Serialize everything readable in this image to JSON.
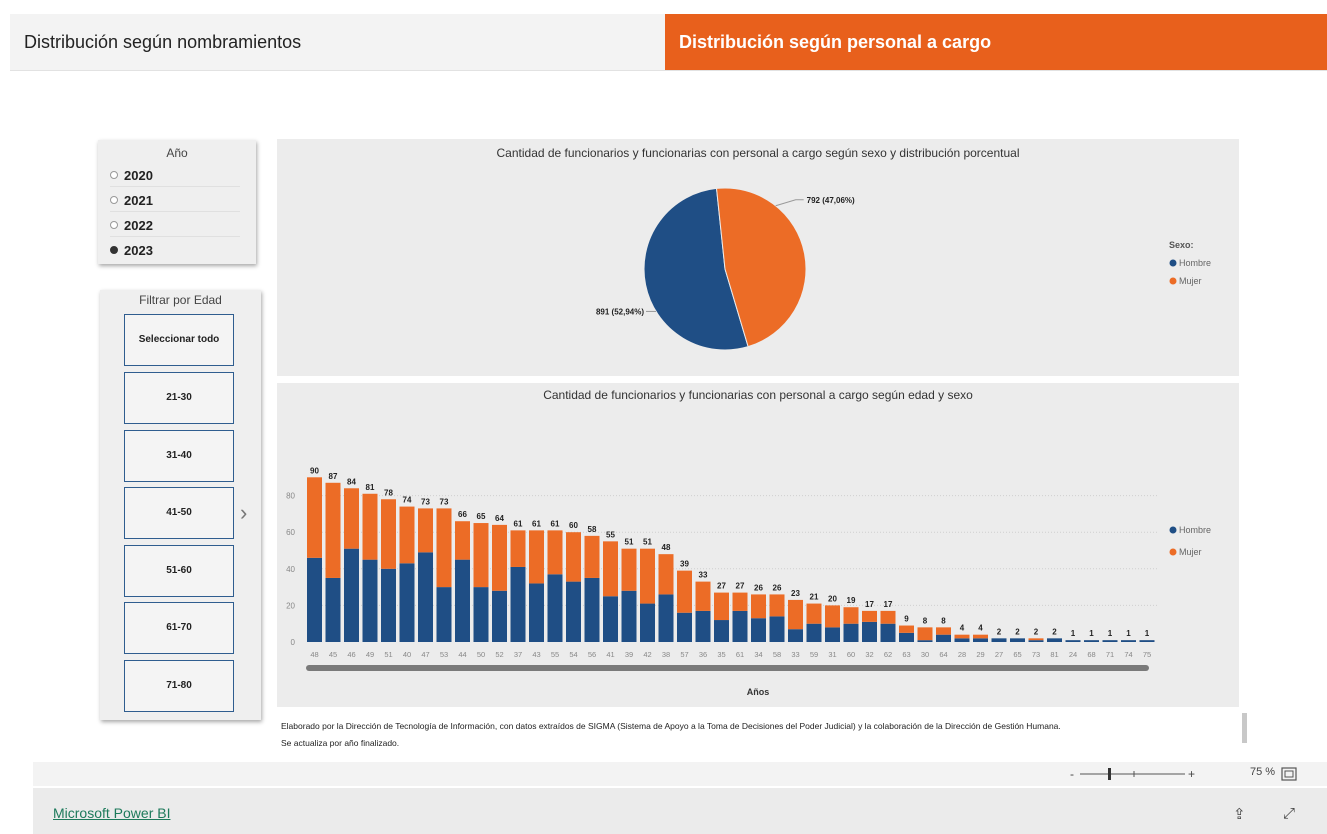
{
  "tabs": [
    {
      "label": "Distribución según nombramientos"
    },
    {
      "label": "Distribución según personal a cargo"
    }
  ],
  "year_slicer": {
    "title": "Año",
    "options": [
      {
        "label": "2020",
        "selected": false
      },
      {
        "label": "2021",
        "selected": false
      },
      {
        "label": "2022",
        "selected": false
      },
      {
        "label": "2023",
        "selected": true
      }
    ]
  },
  "age_slicer": {
    "title": "Filtrar por Edad",
    "options": [
      "Seleccionar todo",
      "21-30",
      "31-40",
      "41-50",
      "51-60",
      "61-70",
      "71-80"
    ]
  },
  "colors": {
    "hombre": "#1f4e85",
    "mujer": "#ec6c26",
    "accent": "#e8601c"
  },
  "icons": [
    "chevron-right-icon",
    "fit-page-icon",
    "share-icon",
    "expand-icon"
  ],
  "chart_data": [
    {
      "type": "pie",
      "title": "Cantidad de funcionarios y funcionarias con personal a cargo según sexo y distribución porcentual",
      "legend_title": "Sexo:",
      "legend_position": "right",
      "slices": [
        {
          "label": "Hombre",
          "value": 891,
          "data_label": "891 (52,94%)"
        },
        {
          "label": "Mujer",
          "value": 792,
          "data_label": "792 (47,06%)"
        }
      ]
    },
    {
      "type": "bar",
      "stacked": true,
      "title": "Cantidad de funcionarios y funcionarias con personal a cargo según edad y sexo",
      "xlabel": "Años",
      "ylabel": "",
      "ylim": [
        0,
        95
      ],
      "yticks": [
        0,
        20,
        40,
        60,
        80
      ],
      "grid": true,
      "legend_position": "right",
      "categories": [
        "48",
        "45",
        "46",
        "49",
        "51",
        "40",
        "47",
        "53",
        "44",
        "50",
        "52",
        "37",
        "43",
        "55",
        "54",
        "56",
        "41",
        "39",
        "42",
        "38",
        "57",
        "36",
        "35",
        "61",
        "34",
        "58",
        "33",
        "59",
        "31",
        "60",
        "32",
        "62",
        "63",
        "30",
        "64",
        "28",
        "29",
        "27",
        "65",
        "73",
        "81",
        "24",
        "68",
        "71",
        "74",
        "75"
      ],
      "totals": [
        90,
        87,
        84,
        81,
        78,
        74,
        73,
        73,
        66,
        65,
        64,
        61,
        61,
        61,
        60,
        58,
        55,
        51,
        51,
        48,
        39,
        33,
        27,
        27,
        26,
        26,
        23,
        21,
        20,
        19,
        17,
        17,
        9,
        8,
        8,
        4,
        4,
        2,
        2,
        2,
        2,
        1,
        1,
        1,
        1,
        1
      ],
      "series": [
        {
          "name": "Hombre",
          "values": [
            46,
            35,
            51,
            45,
            40,
            43,
            49,
            30,
            45,
            30,
            28,
            41,
            32,
            37,
            33,
            35,
            25,
            28,
            21,
            26,
            16,
            17,
            12,
            17,
            13,
            14,
            7,
            10,
            8,
            10,
            11,
            10,
            5,
            1,
            4,
            2,
            2,
            2,
            2,
            1,
            2,
            1,
            1,
            1,
            1,
            1
          ]
        },
        {
          "name": "Mujer",
          "values": [
            44,
            52,
            33,
            36,
            38,
            31,
            24,
            43,
            21,
            35,
            36,
            20,
            29,
            24,
            27,
            23,
            30,
            23,
            30,
            22,
            23,
            16,
            15,
            10,
            13,
            12,
            16,
            11,
            12,
            9,
            6,
            7,
            4,
            7,
            4,
            2,
            2,
            0,
            0,
            1,
            0,
            0,
            0,
            0,
            0,
            0
          ]
        }
      ]
    }
  ],
  "footnote": {
    "line1": "Elaborado por la Dirección de Tecnología de Información, con datos extraídos de SIGMA (Sistema de Apoyo a la Toma de Decisiones del Poder Judicial) y la colaboración de la Dirección de Gestión Humana.",
    "line2": "Se actualiza por año finalizado."
  },
  "zoom": {
    "minus": "-",
    "plus": "+",
    "level": "75 %"
  },
  "brand": {
    "label": "Microsoft Power BI"
  }
}
